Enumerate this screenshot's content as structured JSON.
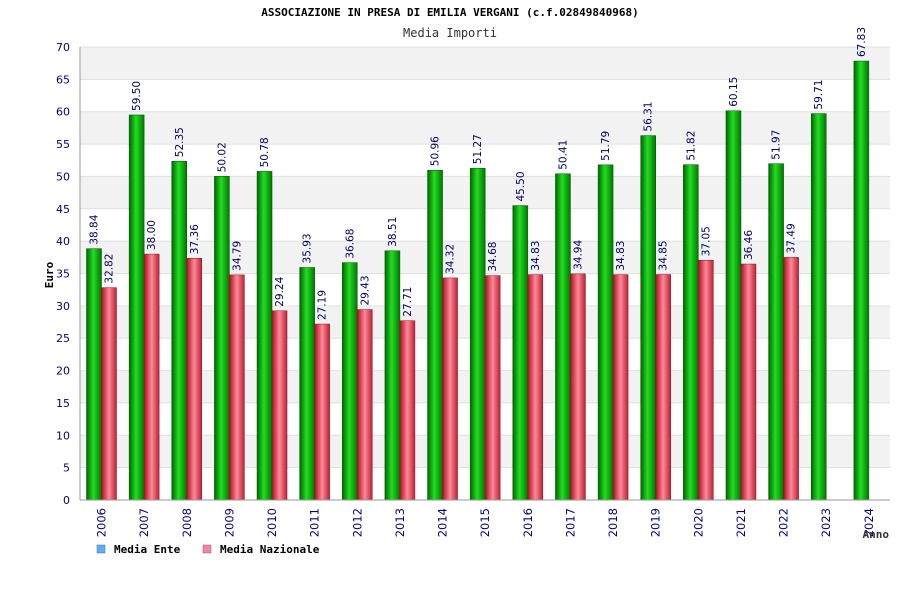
{
  "chart_data": {
    "type": "bar",
    "title": "ASSOCIAZIONE IN PRESA DI EMILIA VERGANI (c.f.02849840968)",
    "subtitle": "Media Importi",
    "xlabel": "Anno",
    "ylabel": "Euro",
    "ylim": [
      0,
      70
    ],
    "ytick_step": 5,
    "categories": [
      "2006",
      "2007",
      "2008",
      "2009",
      "2010",
      "2011",
      "2012",
      "2013",
      "2014",
      "2015",
      "2016",
      "2017",
      "2018",
      "2019",
      "2020",
      "2021",
      "2022",
      "2023",
      "2024"
    ],
    "series": [
      {
        "name": "Media Ente",
        "color": "#00aa00",
        "values": [
          38.84,
          59.5,
          52.35,
          50.02,
          50.78,
          35.93,
          36.68,
          38.51,
          50.96,
          51.27,
          45.5,
          50.41,
          51.79,
          56.31,
          51.82,
          60.15,
          51.97,
          59.71,
          67.83
        ],
        "labels": [
          "38.84",
          "59.50",
          "52.35",
          "50.02",
          "50.78",
          "35.93",
          "36.68",
          "38.51",
          "50.96",
          "51.27",
          "45.50",
          "50.41",
          "51.79",
          "56.31",
          "51.82",
          "60.15",
          "51.97",
          "59.71",
          "67.83"
        ]
      },
      {
        "name": "Media Nazionale",
        "color": "#dd3344",
        "values": [
          32.82,
          38.0,
          37.36,
          34.79,
          29.24,
          27.19,
          29.43,
          27.71,
          34.32,
          34.68,
          34.83,
          34.94,
          34.83,
          34.85,
          37.05,
          36.46,
          37.49,
          null,
          null
        ],
        "labels": [
          "32.82",
          "38.00",
          "37.36",
          "34.79",
          "29.24",
          "27.19",
          "29.43",
          "27.71",
          "34.32",
          "34.68",
          "34.83",
          "34.94",
          "34.83",
          "34.85",
          "37.05",
          "36.46",
          "37.49",
          null,
          null
        ]
      }
    ],
    "legend": [
      {
        "label": "Media Ente",
        "color": "#66aaee"
      },
      {
        "label": "Media Nazionale",
        "color": "#ee88aa"
      }
    ],
    "legend_position": "bottom-left",
    "grid": true
  }
}
